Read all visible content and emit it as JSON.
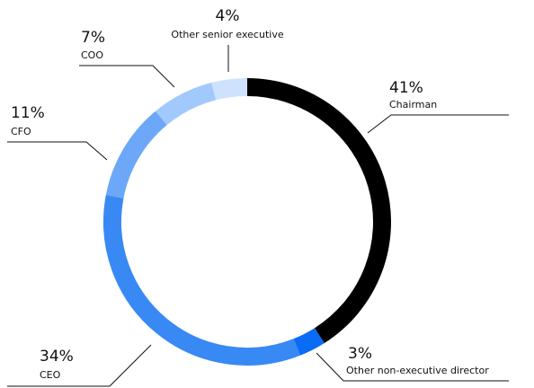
{
  "chart_data": {
    "type": "pie",
    "variant": "donut",
    "slices": [
      {
        "label": "Chairman",
        "pct_text": "41%",
        "value": 41,
        "color": "#000000"
      },
      {
        "label": "Other non-executive director",
        "pct_text": "3%",
        "value": 3,
        "color": "#0a6cf5"
      },
      {
        "label": "CEO",
        "pct_text": "34%",
        "value": 34,
        "color": "#3889f4"
      },
      {
        "label": "CFO",
        "pct_text": "11%",
        "value": 11,
        "color": "#6ca8f7"
      },
      {
        "label": "COO",
        "pct_text": "7%",
        "value": 7,
        "color": "#a2c9fb"
      },
      {
        "label": "Other senior executive",
        "pct_text": "4%",
        "value": 4,
        "color": "#cfe2fd"
      }
    ]
  }
}
